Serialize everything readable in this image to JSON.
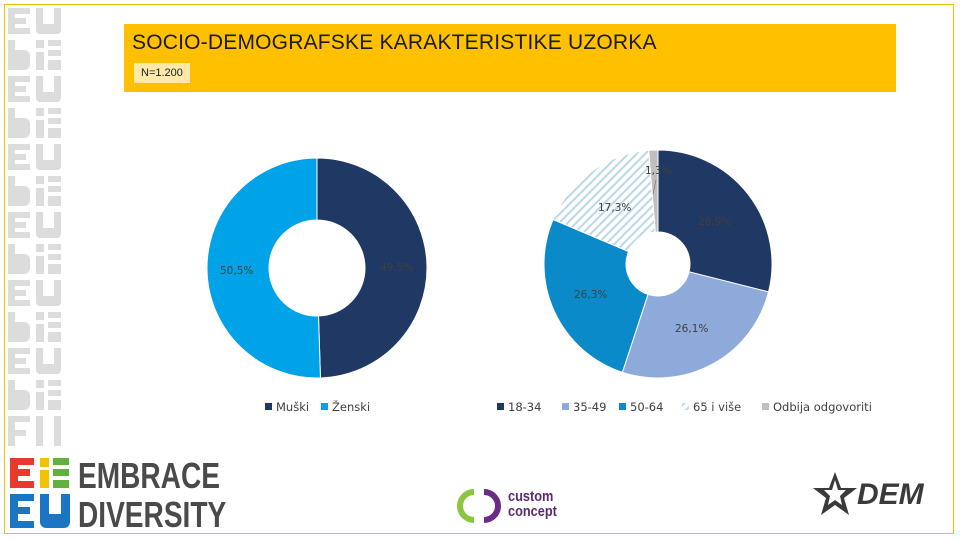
{
  "title": "SOCIO-DEMOGRAFSKE KARAKTERISTIKE UZORKA",
  "sample_label": "N=1.200",
  "colors": {
    "title_bar": "#ffc000",
    "dark_navy": "#1f3864",
    "bright_blue": "#00a2e8",
    "light_blue": "#8eaadb",
    "mid_blue": "#0a8ac8",
    "grey": "#bfbfbf"
  },
  "chart_data": [
    {
      "type": "pie",
      "style": "donut",
      "categories": [
        "Muški",
        "Ženski"
      ],
      "values": [
        49.5,
        50.5
      ],
      "data_labels": [
        "49,5%",
        "50,5%"
      ],
      "colors": [
        "#1f3864",
        "#00a2e8"
      ],
      "legend": "bottom"
    },
    {
      "type": "pie",
      "style": "donut",
      "categories": [
        "18-34",
        "35-49",
        "50-64",
        "65 i više",
        "Odbija odgovoriti"
      ],
      "values": [
        28.9,
        26.1,
        26.3,
        17.3,
        1.3
      ],
      "data_labels": [
        "28,9%",
        "26,1%",
        "26,3%",
        "17,3%",
        "1,3%"
      ],
      "colors": [
        "#1f3864",
        "#8eaadb",
        "#0a8ac8",
        "hatched",
        "#bfbfbf"
      ],
      "legend": "bottom"
    }
  ],
  "logos": {
    "brand_line1": "EMBRACE",
    "brand_line2": "DIVERSITY",
    "partner_line1": "custom",
    "partner_line2": "concept",
    "dem_text": "DEM"
  }
}
